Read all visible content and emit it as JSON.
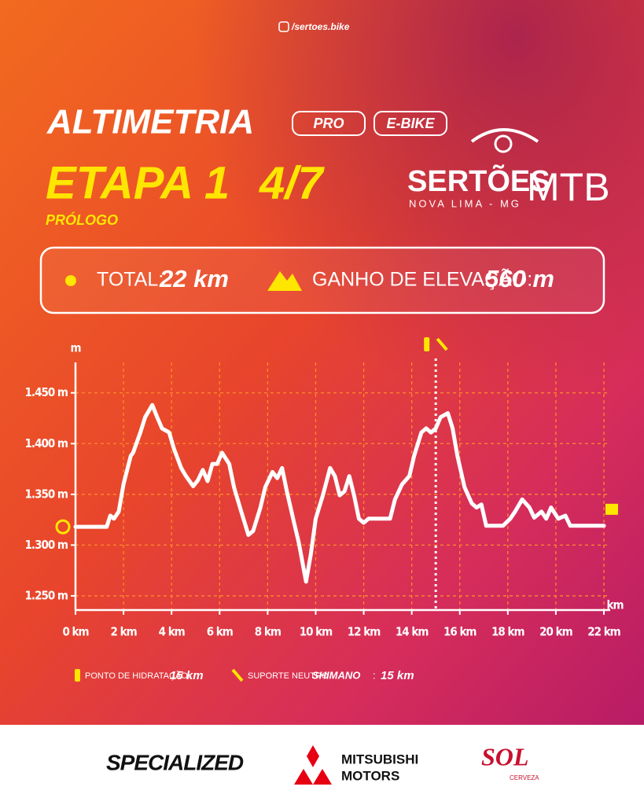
{
  "header": {
    "instagram": "/sertoes.bike",
    "title": "ALTIMETRIA",
    "tags": [
      "PRO",
      "E-BIKE"
    ],
    "stage": "ETAPA 1",
    "stage_count": "4/7",
    "subtitle": "PRÓLOGO",
    "logo": {
      "name": "SERTÕES",
      "suffix": "MTB",
      "place": "NOVA LIMA - MG"
    }
  },
  "stats": {
    "total_label": "TOTAL:",
    "total_value": "22 km",
    "gain_label": "GANHO DE ELEVAÇÃO:",
    "gain_value": "560 m"
  },
  "chart_data": {
    "type": "line",
    "color": "#ffffff",
    "x_label": "km",
    "y_label": "m",
    "grid": true,
    "marker_x": 15,
    "xlim": [
      0,
      22
    ],
    "ylim": [
      1236,
      1480
    ],
    "xticks": [
      {
        "value": 0,
        "label": "0 km"
      },
      {
        "value": 2,
        "label": "2 km"
      },
      {
        "value": 4,
        "label": "4 km"
      },
      {
        "value": 6,
        "label": "6 km"
      },
      {
        "value": 8,
        "label": "8 km"
      },
      {
        "value": 10,
        "label": "10 km"
      },
      {
        "value": 12,
        "label": "12 km"
      },
      {
        "value": 14,
        "label": "14 km"
      },
      {
        "value": 16,
        "label": "16 km"
      },
      {
        "value": 18,
        "label": "18 km"
      },
      {
        "value": 20,
        "label": "20 km"
      },
      {
        "value": 22,
        "label": "22 km"
      }
    ],
    "yticks": [
      {
        "value": 1250,
        "label": "1.250 m"
      },
      {
        "value": 1300,
        "label": "1.300 m"
      },
      {
        "value": 1350,
        "label": "1.350 m"
      },
      {
        "value": 1400,
        "label": "1.400 m"
      },
      {
        "value": 1450,
        "label": "1.450 m"
      }
    ],
    "x": [
      0,
      1.3,
      1.45,
      1.6,
      1.8,
      2.0,
      2.3,
      2.4,
      2.7,
      2.9,
      3.2,
      3.4,
      3.6,
      3.9,
      4.1,
      4.4,
      4.6,
      4.9,
      5.1,
      5.3,
      5.5,
      5.7,
      5.9,
      6.1,
      6.4,
      6.6,
      6.9,
      7.2,
      7.4,
      7.7,
      7.9,
      8.2,
      8.4,
      8.6,
      8.8,
      9.1,
      9.3,
      9.6,
      9.8,
      10.0,
      10.3,
      10.6,
      10.8,
      11.0,
      11.2,
      11.4,
      11.6,
      11.8,
      12.0,
      12.2,
      13.1,
      13.3,
      13.6,
      13.9,
      14.1,
      14.4,
      14.6,
      14.8,
      15.0,
      15.2,
      15.5,
      15.7,
      15.9,
      16.2,
      16.5,
      16.7,
      16.9,
      17.1,
      17.8,
      18.1,
      18.3,
      18.6,
      18.9,
      19.1,
      19.4,
      19.6,
      19.8,
      20.1,
      20.4,
      20.6,
      21.7,
      22.0
    ],
    "values": [
      1318,
      1318,
      1329,
      1326,
      1333,
      1360,
      1388,
      1391,
      1411,
      1426,
      1438,
      1426,
      1415,
      1411,
      1395,
      1376,
      1368,
      1358,
      1364,
      1374,
      1363,
      1380,
      1380,
      1391,
      1380,
      1357,
      1333,
      1310,
      1314,
      1337,
      1357,
      1372,
      1366,
      1376,
      1353,
      1322,
      1302,
      1264,
      1291,
      1326,
      1349,
      1376,
      1368,
      1349,
      1353,
      1368,
      1349,
      1326,
      1322,
      1326,
      1326,
      1345,
      1360,
      1368,
      1388,
      1411,
      1415,
      1411,
      1415,
      1426,
      1430,
      1415,
      1388,
      1357,
      1341,
      1337,
      1340,
      1319,
      1319,
      1326,
      1333,
      1345,
      1337,
      1327,
      1333,
      1326,
      1337,
      1326,
      1329,
      1319,
      1319,
      1319
    ]
  },
  "notes": {
    "hydration_label": "PONTO DE HIDRATAÇÃO:",
    "hydration_value": "15 km",
    "support_label": "SUPORTE NEUTRO",
    "support_brand": "SHIMANO",
    "support_sep": ":",
    "support_value": "15 km"
  },
  "sponsors": {
    "specialized": "SPECIALIZED",
    "mitsubishi_1": "MITSUBISHI",
    "mitsubishi_2": "MOTORS",
    "sol": "SOL",
    "sol_sub": "CERVEZA"
  }
}
